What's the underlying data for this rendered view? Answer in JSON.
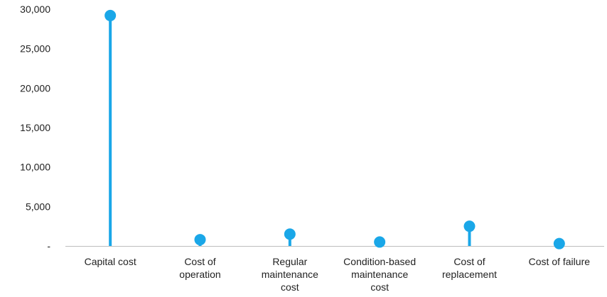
{
  "chart_data": {
    "type": "lollipop",
    "categories": [
      [
        "Capital cost"
      ],
      [
        "Cost of",
        "operation"
      ],
      [
        "Regular",
        "maintenance",
        "cost"
      ],
      [
        "Condition-based",
        "maintenance",
        "cost"
      ],
      [
        "Cost of",
        "replacement"
      ],
      [
        "Cost of failure"
      ]
    ],
    "values": [
      29200,
      800,
      1500,
      500,
      2500,
      300
    ],
    "ylim": [
      0,
      30000
    ],
    "yticks": [
      0,
      5000,
      10000,
      15000,
      20000,
      25000,
      30000
    ],
    "ytick_labels": [
      "-",
      "5,000",
      "10,000",
      "15,000",
      "20,000",
      "25,000",
      "30,000"
    ],
    "grid": false,
    "colors": {
      "series": "#1aa7e8",
      "axis": "#bdbdbd",
      "text": "#222222"
    }
  }
}
